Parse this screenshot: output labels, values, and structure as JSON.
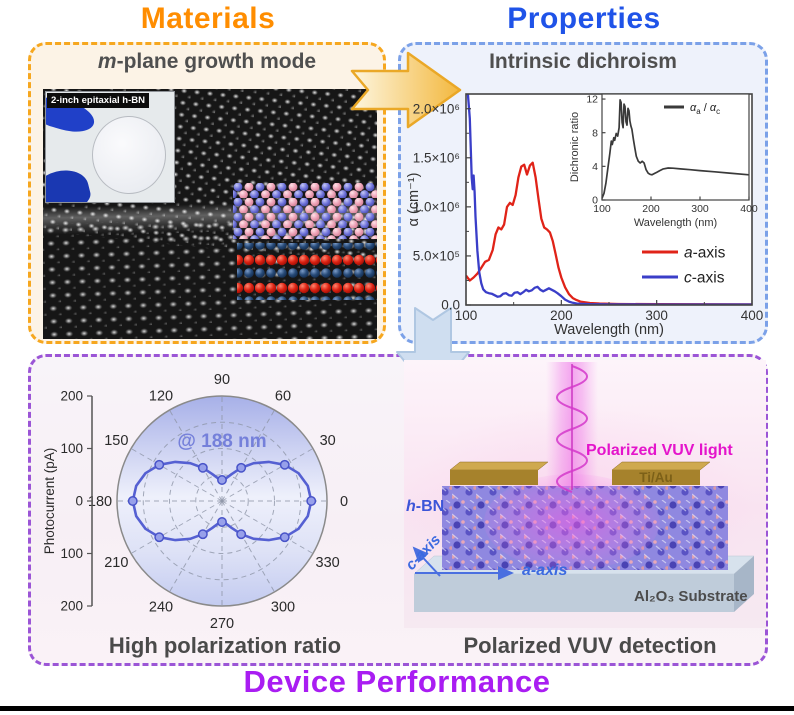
{
  "titles": {
    "materials": "Materials",
    "properties": "Properties",
    "device_performance": "Device Performance"
  },
  "materials_panel": {
    "header": {
      "em": "m",
      "rest": "-plane growth mode"
    },
    "wafer_inset_label": "2-inch epitaxial h-BN",
    "atom_colors": {
      "hbn_pink": "#ec9fb4",
      "hbn_blue": "#6b6fd8",
      "sapphire_navy": "#224570",
      "sapphire_red": "#d42015"
    }
  },
  "properties_panel": {
    "header": "Intrinsic dichroism"
  },
  "performance_panel": {
    "left_caption": "High polarization ratio",
    "right_caption": "Polarized VUV detection",
    "device_labels": {
      "light": "Polarized VUV light",
      "electrode": "Ti/Au",
      "material": {
        "em": "h",
        "rest": "-BN"
      },
      "c_axis": {
        "em": "c",
        "rest": "-axis"
      },
      "a_axis": {
        "em": "a",
        "rest": "-axis"
      },
      "substrate": "Al₂O₃ Substrate"
    }
  },
  "colors": {
    "materials_accent": "#ff8d00",
    "properties_accent": "#1f53e8",
    "device_accent": "#a91df2",
    "a_axis_red": "#e02318",
    "c_axis_blue": "#3a3ec8",
    "ratio_gray": "#3a3a3a",
    "polar_blue": "#5560d2",
    "magenta": "#e414cb",
    "gold_electrode": "#a6822c",
    "substrate_blue": "#bfccda"
  },
  "chart_data": [
    {
      "id": "spectrum",
      "type": "line",
      "xlabel": "Wavelength (nm)",
      "ylabel": "α (cm⁻¹)",
      "xlim": [
        100,
        400
      ],
      "ylim": [
        0,
        2150000
      ],
      "xticks": [
        {
          "v": 100,
          "label": "100"
        },
        {
          "v": 200,
          "label": "200"
        },
        {
          "v": 300,
          "label": "300"
        },
        {
          "v": 400,
          "label": "400"
        }
      ],
      "xminor": [
        150,
        250,
        350
      ],
      "yticks": [
        {
          "v": 0,
          "label": "0.0"
        },
        {
          "v": 500000,
          "label": "5.0×10⁵"
        },
        {
          "v": 1000000,
          "label": "1.0×10⁶"
        },
        {
          "v": 1500000,
          "label": "1.5×10⁶"
        },
        {
          "v": 2000000,
          "label": "2.0×10⁶"
        }
      ],
      "yminor": [
        250000,
        750000,
        1250000,
        1750000
      ],
      "legend_position": "bottom-right",
      "series": [
        {
          "name": "a-axis",
          "legend": [
            {
              "t": "a",
              "i": true
            },
            {
              "t": "-axis"
            }
          ],
          "color": "#e02318",
          "x": [
            100,
            104,
            108,
            112,
            116,
            120,
            124,
            128,
            131,
            134,
            137,
            140,
            143,
            146,
            149,
            152,
            155,
            158,
            161,
            164,
            167,
            170,
            173,
            176,
            179,
            182,
            185,
            188,
            191,
            194,
            197,
            200,
            204,
            208,
            212,
            216,
            220,
            230,
            240,
            260,
            300,
            400
          ],
          "y": [
            300000,
            250000,
            280000,
            320000,
            380000,
            440000,
            460000,
            560000,
            720000,
            790000,
            770000,
            820000,
            1000000,
            1040000,
            1020000,
            1120000,
            1300000,
            1410000,
            1430000,
            1330000,
            1420000,
            1450000,
            1300000,
            1080000,
            880000,
            790000,
            770000,
            740000,
            650000,
            520000,
            380000,
            280000,
            180000,
            110000,
            70000,
            50000,
            35000,
            20000,
            15000,
            10000,
            8000,
            6000
          ]
        },
        {
          "name": "c-axis",
          "legend": [
            {
              "t": "c",
              "i": true
            },
            {
              "t": "-axis"
            }
          ],
          "color": "#3a3ec8",
          "x": [
            100,
            102,
            104,
            106,
            107,
            108,
            109,
            110,
            112,
            114,
            116,
            118,
            121,
            124,
            127,
            130,
            133,
            136,
            139,
            142,
            145,
            148,
            151,
            154,
            157,
            160,
            163,
            166,
            169,
            172,
            175,
            178,
            181,
            184,
            187,
            190,
            193,
            196,
            200,
            204,
            208,
            212,
            216,
            220,
            230,
            250,
            300,
            400
          ],
          "y": [
            2300000,
            2300000,
            1900000,
            1300000,
            1180000,
            1320000,
            1150000,
            900000,
            550000,
            330000,
            220000,
            160000,
            130000,
            120000,
            115000,
            100000,
            85000,
            90000,
            115000,
            120000,
            100000,
            95000,
            125000,
            130000,
            110000,
            130000,
            155000,
            140000,
            150000,
            175000,
            185000,
            155000,
            140000,
            155000,
            170000,
            155000,
            140000,
            120000,
            90000,
            55000,
            35000,
            22000,
            15000,
            12000,
            8000,
            6000,
            5000,
            5000
          ]
        }
      ]
    },
    {
      "id": "ratio_inset",
      "type": "line",
      "xlabel": "Wavelength (nm)",
      "ylabel": "Dichronic ratio",
      "xlim": [
        100,
        400
      ],
      "ylim": [
        0,
        12.6
      ],
      "xticks": [
        {
          "v": 100,
          "label": "100"
        },
        {
          "v": 200,
          "label": "200"
        },
        {
          "v": 300,
          "label": "300"
        },
        {
          "v": 400,
          "label": "400"
        }
      ],
      "yticks": [
        {
          "v": 0,
          "label": "0"
        },
        {
          "v": 4,
          "label": "4"
        },
        {
          "v": 8,
          "label": "8"
        },
        {
          "v": 12,
          "label": "12"
        }
      ],
      "legend_position": "top-right",
      "series": [
        {
          "name": "dichroic ratio",
          "legend": [
            {
              "t": "α",
              "i": true
            },
            {
              "t": "a",
              "sub": true
            },
            {
              "t": " / "
            },
            {
              "t": "α",
              "i": true
            },
            {
              "t": "c",
              "sub": true
            }
          ],
          "color": "#3a3a3a",
          "x": [
            100,
            104,
            108,
            112,
            116,
            119,
            121,
            124,
            126,
            129,
            132,
            135,
            137,
            139,
            141,
            143,
            145,
            147,
            149,
            151,
            153,
            155,
            157,
            159,
            161,
            164,
            167,
            170,
            174,
            178,
            182,
            186,
            190,
            194,
            198,
            202,
            207,
            212,
            218,
            225,
            235,
            245,
            260,
            280,
            300,
            330,
            360,
            400
          ],
          "y": [
            0.2,
            0.8,
            2.0,
            3.8,
            5.5,
            7.0,
            6.6,
            7.4,
            7.1,
            7.9,
            7.6,
            8.6,
            11.9,
            11.6,
            9.2,
            8.6,
            11.4,
            11.1,
            9.3,
            8.9,
            10.9,
            10.6,
            9.4,
            8.8,
            8.4,
            7.2,
            6.2,
            5.2,
            4.6,
            4.4,
            4.6,
            4.4,
            3.6,
            3.2,
            3.05,
            3.0,
            3.15,
            3.3,
            3.5,
            3.7,
            3.8,
            3.78,
            3.7,
            3.6,
            3.5,
            3.35,
            3.2,
            3.0
          ]
        }
      ]
    },
    {
      "id": "polar",
      "type": "polar",
      "annotation": "@ 188 nm",
      "rmax": 200,
      "rings": [
        50,
        100,
        150
      ],
      "angle_labels_deg": [
        0,
        30,
        60,
        90,
        120,
        150,
        180,
        210,
        240,
        270,
        300,
        330
      ],
      "radial_axis": {
        "label": "Photocurrent (pA)",
        "ticks": [
          {
            "v": 200,
            "label": "200"
          },
          {
            "v": 100,
            "label": "100"
          },
          {
            "v": 0,
            "label": "0"
          },
          {
            "v": -100,
            "label": "100"
          },
          {
            "v": -200,
            "label": "200"
          }
        ]
      },
      "series": [
        {
          "name": "photocurrent at 188 nm",
          "color": "#5560d2",
          "angles_deg": [
            0,
            10,
            20,
            30,
            40,
            50,
            60,
            70,
            80,
            90,
            100,
            110,
            120,
            130,
            140,
            150,
            160,
            170,
            180,
            190,
            200,
            210,
            220,
            230,
            240,
            250,
            260,
            270,
            280,
            290,
            300,
            310,
            320,
            330,
            340,
            350,
            360
          ],
          "values": [
            170,
            166,
            155,
            138,
            116,
            94,
            73,
            55,
            44,
            40,
            44,
            55,
            73,
            94,
            116,
            138,
            155,
            166,
            170,
            166,
            155,
            138,
            116,
            94,
            73,
            55,
            44,
            40,
            44,
            55,
            73,
            94,
            116,
            138,
            155,
            166,
            170
          ],
          "marker_angles_deg": [
            0,
            30,
            60,
            90,
            120,
            150,
            180,
            210,
            240,
            270,
            300,
            330
          ],
          "marker_values": [
            170,
            138,
            73,
            40,
            73,
            138,
            170,
            138,
            73,
            40,
            73,
            138
          ]
        }
      ]
    }
  ]
}
